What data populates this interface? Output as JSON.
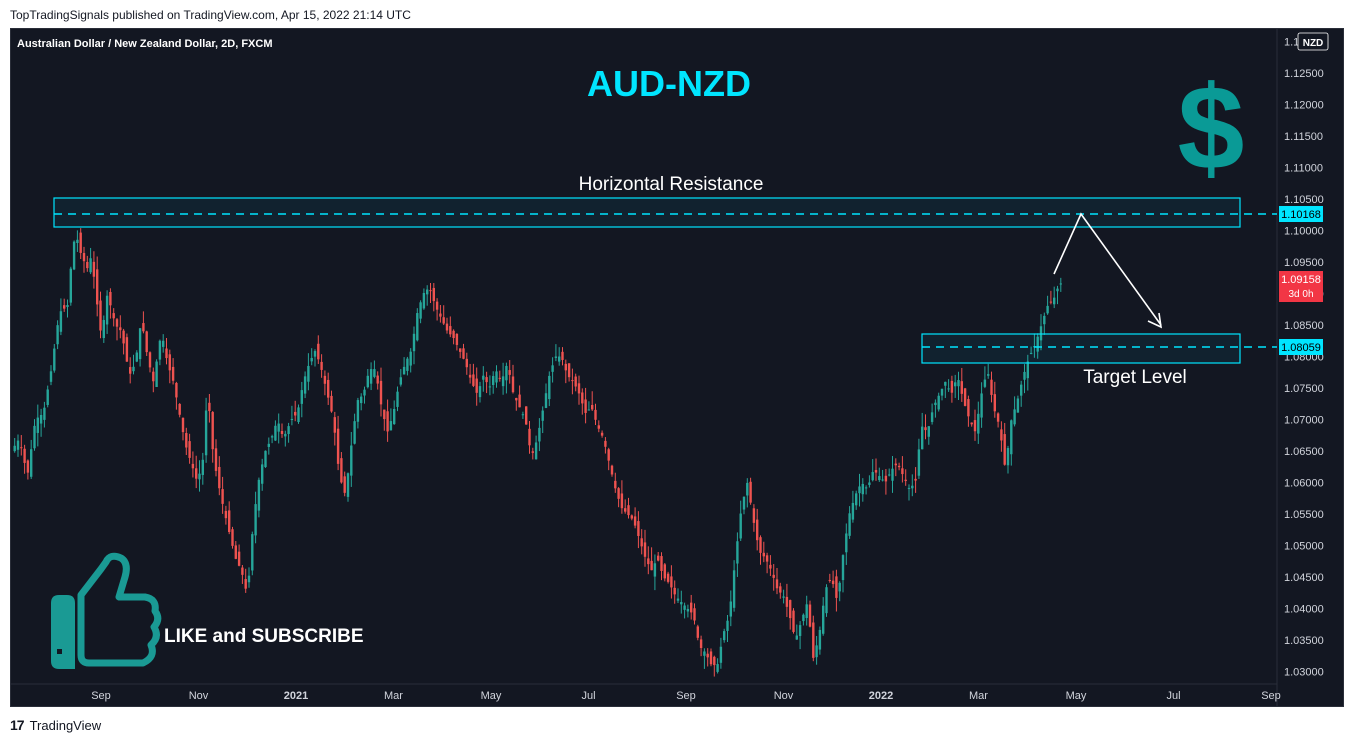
{
  "header": {
    "publish_line": "TopTradingSignals published on TradingView.com, Apr 15, 2022 21:14 UTC"
  },
  "symbol_line": "Australian Dollar / New Zealand Dollar, 2D, FXCM",
  "currency_badge": "NZD",
  "headline": "AUD-NZD",
  "dollar_glyph": "$",
  "annotations": {
    "resistance_label": "Horizontal Resistance",
    "target_label": "Target Level",
    "cta": "LIKE and SUBSCRIBE"
  },
  "price_labels": {
    "resistance": "1.10168",
    "last": "1.09158",
    "last_countdown": "3d 0h",
    "target": "1.08059"
  },
  "footer": {
    "brand": "TradingView",
    "logo": "17"
  },
  "colors": {
    "background": "#131722",
    "up": "#26a69a",
    "down": "#ef5350",
    "accent": "#00e5ff",
    "dollar": "#0a9a96",
    "thumb": "#1a9a94"
  },
  "icons": [
    "thumbs-up-icon",
    "dollar-icon",
    "tradingview-logo-icon"
  ],
  "chart_data": {
    "type": "candlestick",
    "instrument": "Australian Dollar / New Zealand Dollar",
    "timeframe": "2D",
    "source": "FXCM",
    "ylim": [
      1.028,
      1.132
    ],
    "y_ticks": [
      "1.03000",
      "1.03500",
      "1.04000",
      "1.04500",
      "1.05000",
      "1.05500",
      "1.06000",
      "1.06500",
      "1.07000",
      "1.07500",
      "1.08000",
      "1.08500",
      "1.09000",
      "1.09500",
      "1.10000",
      "1.10500",
      "1.11000",
      "1.11500",
      "1.12000",
      "1.12500",
      "1.13000"
    ],
    "x_ticks": [
      "Sep",
      "Nov",
      "2021",
      "Mar",
      "May",
      "Jul",
      "Sep",
      "Nov",
      "2022",
      "Mar",
      "May",
      "Jul",
      "Sep"
    ],
    "path": [
      [
        0,
        1.065
      ],
      [
        8,
        1.067
      ],
      [
        16,
        1.061
      ],
      [
        24,
        1.07
      ],
      [
        32,
        1.071
      ],
      [
        40,
        1.078
      ],
      [
        48,
        1.087
      ],
      [
        56,
        1.088
      ],
      [
        60,
        1.095
      ],
      [
        64,
        1.0998
      ],
      [
        70,
        1.096
      ],
      [
        76,
        1.094
      ],
      [
        80,
        1.096
      ],
      [
        86,
        1.088
      ],
      [
        90,
        1.083
      ],
      [
        96,
        1.09
      ],
      [
        104,
        1.085
      ],
      [
        110,
        1.084
      ],
      [
        118,
        1.077
      ],
      [
        124,
        1.079
      ],
      [
        130,
        1.086
      ],
      [
        136,
        1.08
      ],
      [
        142,
        1.076
      ],
      [
        150,
        1.084
      ],
      [
        156,
        1.079
      ],
      [
        162,
        1.076
      ],
      [
        168,
        1.071
      ],
      [
        174,
        1.066
      ],
      [
        180,
        1.063
      ],
      [
        186,
        1.06
      ],
      [
        192,
        1.064
      ],
      [
        196,
        1.075
      ],
      [
        202,
        1.064
      ],
      [
        208,
        1.059
      ],
      [
        212,
        1.056
      ],
      [
        218,
        1.052
      ],
      [
        224,
        1.048
      ],
      [
        230,
        1.046
      ],
      [
        236,
        1.042
      ],
      [
        242,
        1.054
      ],
      [
        248,
        1.061
      ],
      [
        254,
        1.065
      ],
      [
        260,
        1.067
      ],
      [
        266,
        1.07
      ],
      [
        272,
        1.067
      ],
      [
        280,
        1.07
      ],
      [
        286,
        1.071
      ],
      [
        292,
        1.076
      ],
      [
        298,
        1.079
      ],
      [
        304,
        1.081
      ],
      [
        310,
        1.078
      ],
      [
        316,
        1.074
      ],
      [
        322,
        1.07
      ],
      [
        328,
        1.061
      ],
      [
        334,
        1.058
      ],
      [
        340,
        1.066
      ],
      [
        346,
        1.073
      ],
      [
        352,
        1.074
      ],
      [
        358,
        1.078
      ],
      [
        364,
        1.078
      ],
      [
        370,
        1.072
      ],
      [
        376,
        1.068
      ],
      [
        382,
        1.071
      ],
      [
        388,
        1.076
      ],
      [
        394,
        1.079
      ],
      [
        400,
        1.081
      ],
      [
        406,
        1.087
      ],
      [
        412,
        1.09
      ],
      [
        418,
        1.091
      ],
      [
        424,
        1.088
      ],
      [
        430,
        1.086
      ],
      [
        436,
        1.084
      ],
      [
        442,
        1.083
      ],
      [
        448,
        1.081
      ],
      [
        454,
        1.079
      ],
      [
        460,
        1.076
      ],
      [
        466,
        1.074
      ],
      [
        472,
        1.077
      ],
      [
        478,
        1.075
      ],
      [
        484,
        1.078
      ],
      [
        490,
        1.076
      ],
      [
        496,
        1.079
      ],
      [
        502,
        1.074
      ],
      [
        508,
        1.072
      ],
      [
        514,
        1.07
      ],
      [
        520,
        1.064
      ],
      [
        526,
        1.067
      ],
      [
        532,
        1.072
      ],
      [
        538,
        1.077
      ],
      [
        544,
        1.08
      ],
      [
        550,
        1.08
      ],
      [
        556,
        1.077
      ],
      [
        562,
        1.076
      ],
      [
        568,
        1.074
      ],
      [
        574,
        1.071
      ],
      [
        580,
        1.072
      ],
      [
        586,
        1.069
      ],
      [
        592,
        1.067
      ],
      [
        598,
        1.063
      ],
      [
        604,
        1.059
      ],
      [
        610,
        1.056
      ],
      [
        616,
        1.055
      ],
      [
        622,
        1.054
      ],
      [
        628,
        1.051
      ],
      [
        634,
        1.048
      ],
      [
        640,
        1.046
      ],
      [
        646,
        1.048
      ],
      [
        652,
        1.045
      ],
      [
        658,
        1.044
      ],
      [
        664,
        1.042
      ],
      [
        670,
        1.041
      ],
      [
        676,
        1.04
      ],
      [
        682,
        1.039
      ],
      [
        688,
        1.034
      ],
      [
        694,
        1.033
      ],
      [
        700,
        1.031
      ],
      [
        706,
        1.031
      ],
      [
        712,
        1.036
      ],
      [
        718,
        1.039
      ],
      [
        724,
        1.048
      ],
      [
        730,
        1.056
      ],
      [
        736,
        1.06
      ],
      [
        742,
        1.054
      ],
      [
        748,
        1.049
      ],
      [
        754,
        1.048
      ],
      [
        760,
        1.046
      ],
      [
        766,
        1.043
      ],
      [
        772,
        1.042
      ],
      [
        778,
        1.039
      ],
      [
        784,
        1.035
      ],
      [
        790,
        1.038
      ],
      [
        796,
        1.041
      ],
      [
        802,
        1.032
      ],
      [
        808,
        1.036
      ],
      [
        814,
        1.043
      ],
      [
        820,
        1.045
      ],
      [
        826,
        1.041
      ],
      [
        832,
        1.049
      ],
      [
        838,
        1.055
      ],
      [
        844,
        1.058
      ],
      [
        850,
        1.06
      ],
      [
        856,
        1.059
      ],
      [
        862,
        1.062
      ],
      [
        868,
        1.061
      ],
      [
        874,
        1.06
      ],
      [
        880,
        1.062
      ],
      [
        886,
        1.063
      ],
      [
        892,
        1.061
      ],
      [
        898,
        1.059
      ],
      [
        904,
        1.06
      ],
      [
        910,
        1.069
      ],
      [
        916,
        1.068
      ],
      [
        922,
        1.072
      ],
      [
        928,
        1.074
      ],
      [
        934,
        1.076
      ],
      [
        940,
        1.074
      ],
      [
        946,
        1.077
      ],
      [
        952,
        1.073
      ],
      [
        958,
        1.07
      ],
      [
        964,
        1.068
      ],
      [
        970,
        1.074
      ],
      [
        976,
        1.078
      ],
      [
        982,
        1.072
      ],
      [
        988,
        1.069
      ],
      [
        994,
        1.062
      ],
      [
        1000,
        1.07
      ],
      [
        1006,
        1.073
      ],
      [
        1012,
        1.077
      ],
      [
        1018,
        1.08
      ],
      [
        1024,
        1.082
      ],
      [
        1030,
        1.085
      ],
      [
        1036,
        1.088
      ],
      [
        1042,
        1.089
      ],
      [
        1048,
        1.0916
      ]
    ]
  }
}
